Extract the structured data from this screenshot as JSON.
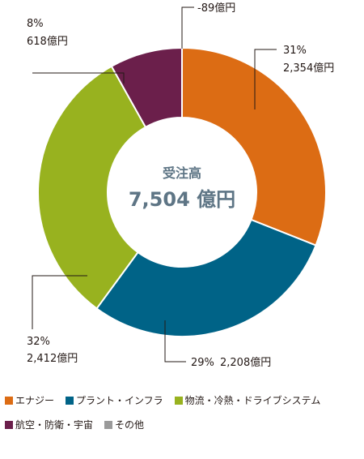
{
  "chart_data": {
    "type": "pie",
    "donut": true,
    "center_title": "受注高",
    "center_value": "7,504 億円",
    "series": [
      {
        "name": "エナジー",
        "percent": 31,
        "percent_label": "31%",
        "amount_label": "2,354億円",
        "value": 2354,
        "color": "#dc6c14"
      },
      {
        "name": "プラント・インフラ",
        "percent": 29,
        "percent_label": "29%",
        "amount_label": "2,208億円",
        "value": 2208,
        "color": "#006387"
      },
      {
        "name": "物流・冷熱・ドライブシステム",
        "percent": 32,
        "percent_label": "32%",
        "amount_label": "2,412億円",
        "value": 2412,
        "color": "#98b21f"
      },
      {
        "name": "航空・防衛・宇宙",
        "percent": 8,
        "percent_label": "8%",
        "amount_label": "618億円",
        "value": 618,
        "color": "#6b1f4b"
      },
      {
        "name": "その他",
        "amount_label": "-89億円",
        "value": -89,
        "color": "#9a9a9a"
      }
    ],
    "legend_placement": "bottom"
  }
}
